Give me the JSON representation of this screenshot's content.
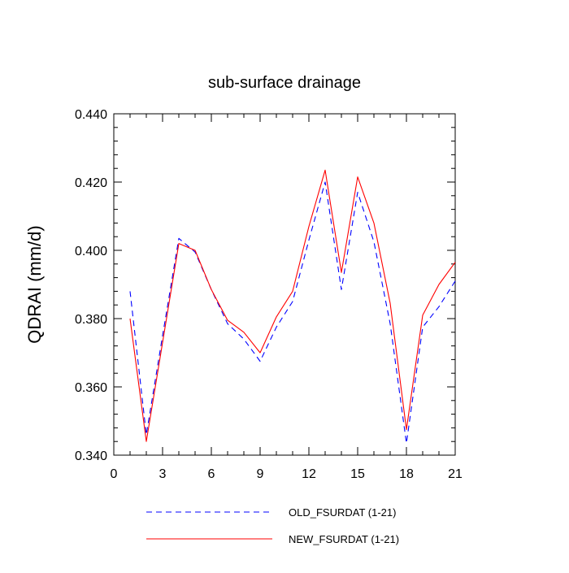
{
  "chart_data": {
    "type": "line",
    "title": "sub-surface drainage",
    "xlabel": "",
    "ylabel": "QDRAI  (mm/d)",
    "xlim": [
      0,
      21
    ],
    "ylim": [
      0.34,
      0.44
    ],
    "xticks": [
      0,
      3,
      6,
      9,
      12,
      15,
      18,
      21
    ],
    "xtick_labels": [
      "0",
      "3",
      "6",
      "9",
      "12",
      "15",
      "18",
      "21"
    ],
    "yticks": [
      0.34,
      0.36,
      0.38,
      0.4,
      0.42,
      0.44
    ],
    "ytick_labels": [
      "0.340",
      "0.360",
      "0.380",
      "0.400",
      "0.420",
      "0.440"
    ],
    "grid": false,
    "legend_position": "bottom",
    "series": [
      {
        "name": "OLD_FSURDAT (1-21)",
        "color": "#0000ff",
        "style": "dashed",
        "x": [
          1,
          2,
          3,
          4,
          5,
          6,
          7,
          8,
          9,
          10,
          11,
          12,
          13,
          14,
          15,
          16,
          17,
          18,
          19,
          20,
          21
        ],
        "values": [
          0.388,
          0.346,
          0.375,
          0.4035,
          0.3995,
          0.3885,
          0.3785,
          0.374,
          0.3675,
          0.3775,
          0.385,
          0.403,
          0.42,
          0.3885,
          0.417,
          0.4025,
          0.3785,
          0.3435,
          0.3775,
          0.3835,
          0.391
        ]
      },
      {
        "name": "NEW_FSURDAT (1-21)",
        "color": "#ff0000",
        "style": "solid",
        "x": [
          1,
          2,
          3,
          4,
          5,
          6,
          7,
          8,
          9,
          10,
          11,
          12,
          13,
          14,
          15,
          16,
          17,
          18,
          19,
          20,
          21
        ],
        "values": [
          0.38,
          0.344,
          0.373,
          0.402,
          0.4,
          0.3885,
          0.3795,
          0.376,
          0.37,
          0.3805,
          0.388,
          0.407,
          0.4235,
          0.3935,
          0.4215,
          0.408,
          0.3845,
          0.3475,
          0.381,
          0.39,
          0.3965
        ]
      }
    ]
  }
}
